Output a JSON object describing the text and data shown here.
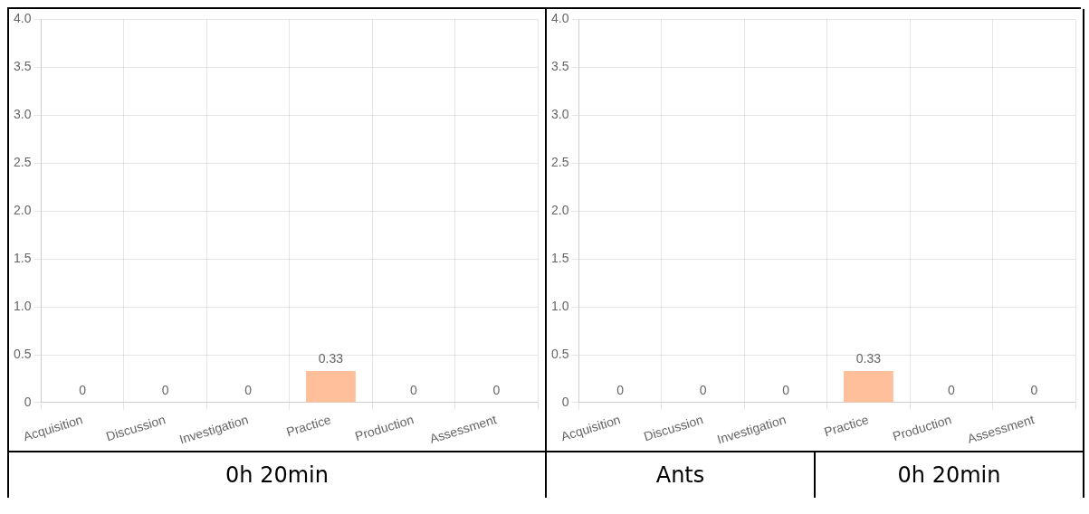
{
  "chart_data": [
    {
      "type": "bar",
      "categories": [
        "Acquisition",
        "Discussion",
        "Investigation",
        "Practice",
        "Production",
        "Assessment"
      ],
      "values": [
        0,
        0,
        0,
        0.33,
        0,
        0
      ],
      "color": "#ffbf9b",
      "ylim": [
        0,
        4
      ],
      "yticks": [
        0,
        0.5,
        {
          "value": 1,
          "label": "1.0"
        },
        1.5,
        {
          "value": 2,
          "label": "2.0"
        },
        2.5,
        {
          "value": 3,
          "label": "3.0"
        },
        3.5,
        {
          "value": 4,
          "label": "4.0"
        }
      ],
      "grid": true,
      "data_labels": true,
      "annotations": [
        "0h 20min"
      ]
    },
    {
      "type": "bar",
      "categories": [
        "Acquisition",
        "Discussion",
        "Investigation",
        "Practice",
        "Production",
        "Assessment"
      ],
      "values": [
        0,
        0,
        0,
        0.33,
        0,
        0
      ],
      "color": "#ffbf9b",
      "ylim": [
        0,
        4
      ],
      "yticks": [
        0,
        0.5,
        {
          "value": 1,
          "label": "1.0"
        },
        1.5,
        {
          "value": 2,
          "label": "2.0"
        },
        2.5,
        {
          "value": 3,
          "label": "3.0"
        },
        3.5,
        {
          "value": 4,
          "label": "4.0"
        }
      ],
      "grid": true,
      "data_labels": true,
      "annotations": [
        "Ants",
        "0h 20min"
      ]
    }
  ]
}
